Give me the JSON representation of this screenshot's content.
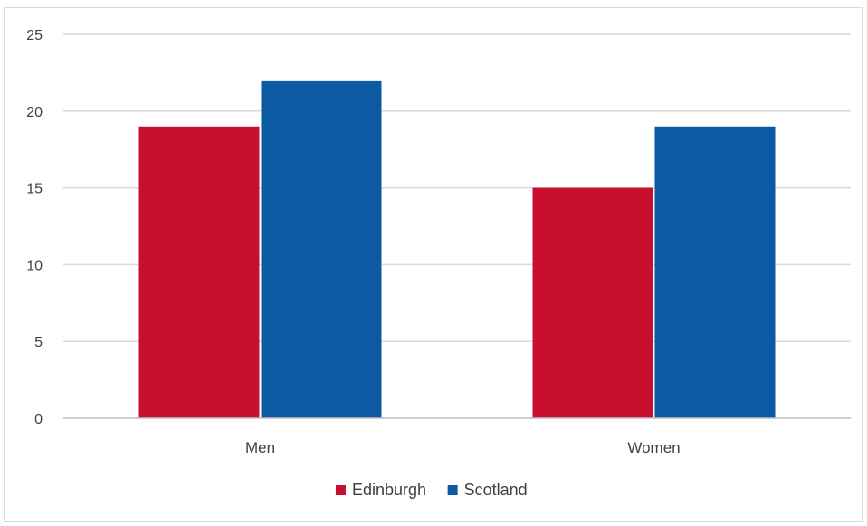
{
  "chart_data": {
    "type": "bar",
    "title": "",
    "xlabel": "",
    "ylabel": "",
    "categories": [
      "Men",
      "Women"
    ],
    "series": [
      {
        "name": "Edinburgh",
        "values": [
          19,
          15
        ],
        "color": "#c8102e"
      },
      {
        "name": "Scotland",
        "values": [
          22,
          19
        ],
        "color": "#0b5aa2"
      }
    ],
    "ylim": [
      0,
      25
    ],
    "yticks": [
      0,
      5,
      10,
      15,
      20,
      25
    ],
    "grid": true,
    "legend": "bottom-center"
  }
}
